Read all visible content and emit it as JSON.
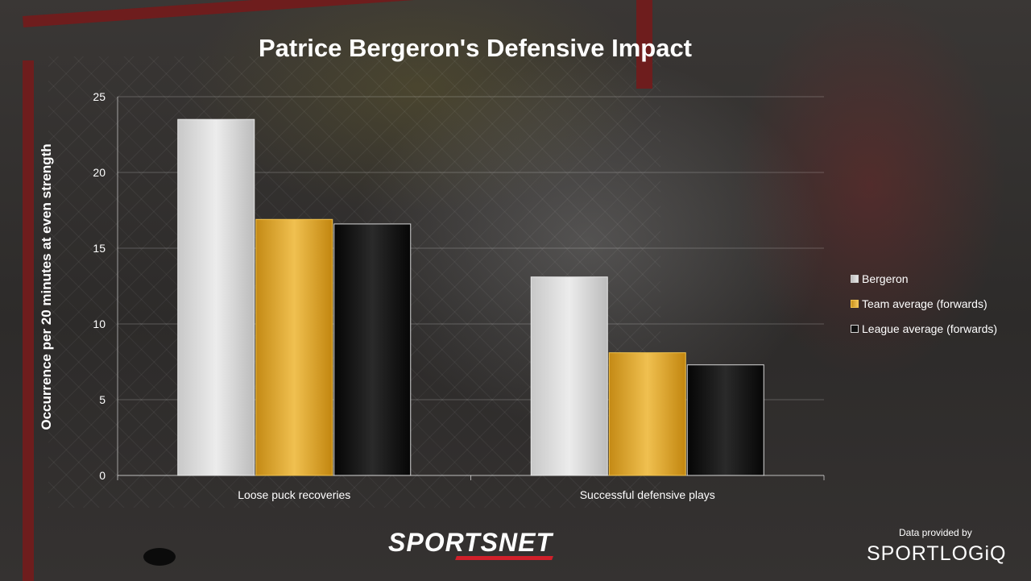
{
  "title": "Patrice Bergeron's Defensive Impact",
  "logo_left": "SPORTSNET",
  "credit": {
    "text": "Data provided by",
    "logo": "SPORTLOGiQ"
  },
  "colors": {
    "Bergeron": "#dedede",
    "Team average (forwards)": "#e0a82a",
    "League average (forwards)": "#141414"
  },
  "chart_data": {
    "type": "bar",
    "title": "Patrice Bergeron's Defensive Impact",
    "xlabel": "",
    "ylabel": "Occurrence per 20 minutes at even strength",
    "ylim": [
      0,
      25
    ],
    "yticks": [
      "0",
      "5",
      "10",
      "15",
      "20",
      "25"
    ],
    "grid": "horizontal",
    "legend_position": "right",
    "categories": [
      "Loose puck recoveries",
      "Successful defensive plays"
    ],
    "series": [
      {
        "name": "Bergeron",
        "values": [
          23.5,
          13.1
        ]
      },
      {
        "name": "Team average (forwards)",
        "values": [
          16.9,
          8.1
        ]
      },
      {
        "name": "League average (forwards)",
        "values": [
          16.6,
          7.3
        ]
      }
    ]
  }
}
